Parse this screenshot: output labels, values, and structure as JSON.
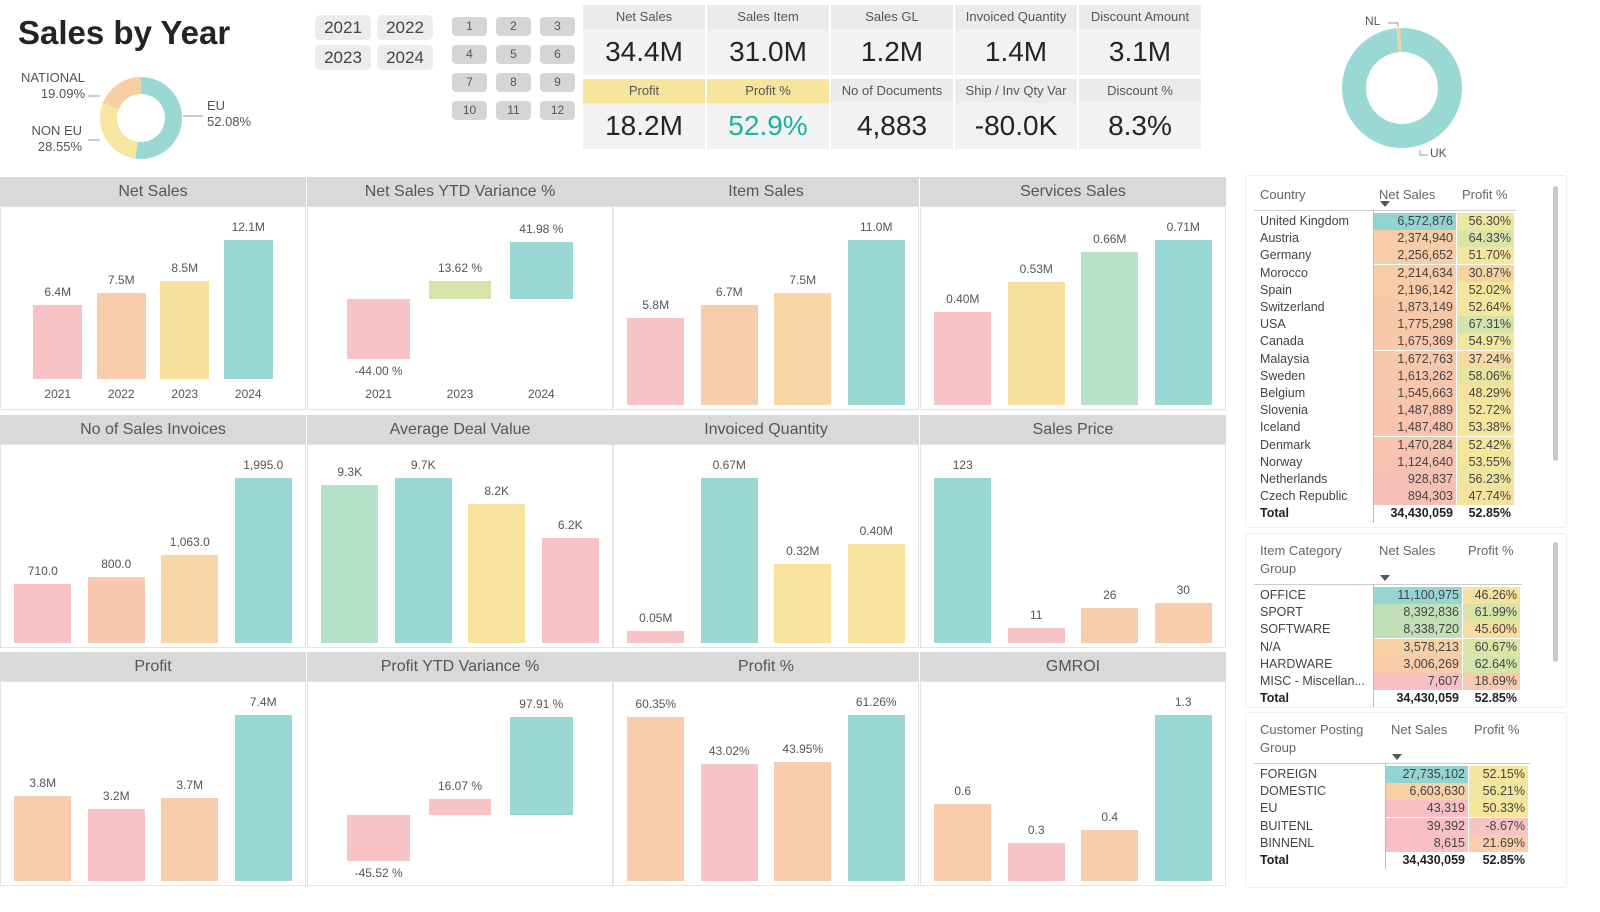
{
  "header": {
    "title": "Sales by Year"
  },
  "year_buttons": [
    "2021",
    "2022",
    "2023",
    "2024"
  ],
  "month_buttons": [
    "1",
    "2",
    "3",
    "4",
    "5",
    "6",
    "7",
    "8",
    "9",
    "10",
    "11",
    "12"
  ],
  "region_donut": {
    "slices": [
      {
        "name": "EU",
        "pct": "52.08%",
        "value": 52.08,
        "color": "#9AD8D5"
      },
      {
        "name": "NON EU",
        "pct": "28.55%",
        "value": 28.55,
        "color": "#F5E6A0"
      },
      {
        "name": "NATIONAL",
        "pct": "19.09%",
        "value": 19.09,
        "color": "#F8CFA2"
      }
    ]
  },
  "country_donut": {
    "slices": [
      {
        "name": "UK",
        "value": 99,
        "color": "#9AD8D5"
      },
      {
        "name": "NL",
        "value": 1,
        "color": "#F8CFA2"
      }
    ]
  },
  "kpis": [
    {
      "label": "Net Sales",
      "value": "34.4M"
    },
    {
      "label": "Sales Item",
      "value": "31.0M"
    },
    {
      "label": "Sales GL",
      "value": "1.2M"
    },
    {
      "label": "Invoiced Quantity",
      "value": "1.4M"
    },
    {
      "label": "Discount Amount",
      "value": "3.1M"
    },
    {
      "label": "Profit",
      "value": "18.2M",
      "highlight": true
    },
    {
      "label": "Profit %",
      "value": "52.9%",
      "highlight": true,
      "value_color": "#1BB3A3"
    },
    {
      "label": "No of Documents",
      "value": "4,883"
    },
    {
      "label": "Ship / Inv Qty Var",
      "value": "-80.0K"
    },
    {
      "label": "Discount %",
      "value": "8.3%"
    }
  ],
  "charts": [
    {
      "title": "Net Sales",
      "categories": [
        "2021",
        "2022",
        "2023",
        "2024"
      ],
      "values": [
        6.4,
        7.5,
        8.5,
        12.1
      ],
      "labels": [
        "6.4M",
        "7.5M",
        "8.5M",
        "12.1M"
      ],
      "colors": [
        "#F8C3C4",
        "#F8CDAE",
        "#F7DF9E",
        "#99D8D4"
      ]
    },
    {
      "title": "Net Sales YTD Variance %",
      "type": "variance",
      "categories": [
        "2021",
        "2023",
        "2024"
      ],
      "values": [
        -44.0,
        13.62,
        41.98
      ],
      "labels": [
        "-44.00 %",
        "13.62 %",
        "41.98 %"
      ],
      "colors": [
        "#F8C3C4",
        "#D6E4A8",
        "#99D8D4"
      ]
    },
    {
      "title": "Item Sales",
      "values": [
        5.8,
        6.7,
        7.5,
        11.0
      ],
      "labels": [
        "5.8M",
        "6.7M",
        "7.5M",
        "11.0M"
      ],
      "colors": [
        "#F8C3C4",
        "#F8CDAE",
        "#F8D6A6",
        "#99D8D4"
      ]
    },
    {
      "title": "Services Sales",
      "values": [
        0.4,
        0.53,
        0.66,
        0.71
      ],
      "labels": [
        "0.40M",
        "0.53M",
        "0.66M",
        "0.71M"
      ],
      "colors": [
        "#F8C3C4",
        "#F7DF9E",
        "#B9E1C8",
        "#99D8D4"
      ]
    },
    {
      "title": "No of Sales Invoices",
      "values": [
        710,
        800,
        1063,
        1995
      ],
      "labels": [
        "710.0",
        "800.0",
        "1,063.0",
        "1,995.0"
      ],
      "colors": [
        "#F8C3C4",
        "#F8C9B0",
        "#F8D6A6",
        "#99D8D4"
      ]
    },
    {
      "title": "Average Deal Value",
      "values": [
        9.3,
        9.7,
        8.2,
        6.2
      ],
      "labels": [
        "9.3K",
        "9.7K",
        "8.2K",
        "6.2K"
      ],
      "colors": [
        "#B5E0C8",
        "#99D8D4",
        "#F7E29E",
        "#F8C3C4"
      ]
    },
    {
      "title": "Invoiced Quantity",
      "values": [
        0.05,
        0.67,
        0.32,
        0.4
      ],
      "labels": [
        "0.05M",
        "0.67M",
        "0.32M",
        "0.40M"
      ],
      "colors": [
        "#F8C3C4",
        "#99D8D4",
        "#F7E29E",
        "#F7E29E"
      ]
    },
    {
      "title": "Sales Price",
      "values": [
        123,
        11,
        26,
        30
      ],
      "labels": [
        "123",
        "11",
        "26",
        "30"
      ],
      "colors": [
        "#99D8D4",
        "#F8C3C4",
        "#F8CDAE",
        "#F8CDAE"
      ]
    },
    {
      "title": "Profit",
      "values": [
        3.8,
        3.2,
        3.7,
        7.4
      ],
      "labels": [
        "3.8M",
        "3.2M",
        "3.7M",
        "7.4M"
      ],
      "colors": [
        "#F8CDAE",
        "#F8C3C4",
        "#F8CDAE",
        "#99D8D4"
      ]
    },
    {
      "title": "Profit YTD Variance %",
      "type": "variance",
      "values": [
        -45.52,
        16.07,
        97.91
      ],
      "labels": [
        "-45.52 %",
        "16.07 %",
        "97.91 %"
      ],
      "colors": [
        "#F8C3C4",
        "#F8C3C4",
        "#99D8D4"
      ]
    },
    {
      "title": "Profit %",
      "values": [
        60.35,
        43.02,
        43.95,
        61.26
      ],
      "labels": [
        "60.35%",
        "43.02%",
        "43.95%",
        "61.26%"
      ],
      "colors": [
        "#F8CDAE",
        "#F8C3C4",
        "#F8CDAE",
        "#99D8D4"
      ]
    },
    {
      "title": "GMROI",
      "values": [
        0.6,
        0.3,
        0.4,
        1.3
      ],
      "labels": [
        "0.6",
        "0.3",
        "0.4",
        "1.3"
      ],
      "colors": [
        "#F8CDAE",
        "#F8C3C4",
        "#F8CDAE",
        "#99D8D4"
      ]
    }
  ],
  "tables": [
    {
      "headers": [
        "Country",
        "Net Sales",
        "Profit %"
      ],
      "rows": [
        [
          "United Kingdom",
          "6,572,876",
          "56.30%",
          "#93D3D2",
          "#EEE79E"
        ],
        [
          "Austria",
          "2,374,940",
          "64.33%",
          "#F8CCA6",
          "#D8E4A8"
        ],
        [
          "Germany",
          "2,256,652",
          "51.70%",
          "#F8CCA6",
          "#F4E69C"
        ],
        [
          "Morocco",
          "2,214,634",
          "30.87%",
          "#F8CCA6",
          "#F6D4A2"
        ],
        [
          "Spain",
          "2,196,142",
          "52.02%",
          "#F8CCA6",
          "#F4E69C"
        ],
        [
          "Switzerland",
          "1,873,149",
          "52.64%",
          "#F8C9A8",
          "#F4E69C"
        ],
        [
          "USA",
          "1,775,298",
          "67.31%",
          "#F8C9A8",
          "#D2E3AE"
        ],
        [
          "Canada",
          "1,675,369",
          "54.97%",
          "#F8C8AA",
          "#F0E69E"
        ],
        [
          "Malaysia",
          "1,672,763",
          "37.24%",
          "#F8C8AA",
          "#F5DBA2"
        ],
        [
          "Sweden",
          "1,613,262",
          "58.06%",
          "#F8C6AC",
          "#E8E5A0"
        ],
        [
          "Belgium",
          "1,545,663",
          "48.29%",
          "#F8C6AC",
          "#F5E29E"
        ],
        [
          "Slovenia",
          "1,487,889",
          "52.72%",
          "#F8C4AE",
          "#F4E69C"
        ],
        [
          "Iceland",
          "1,487,480",
          "53.38%",
          "#F8C4AE",
          "#F2E69C"
        ],
        [
          "Denmark",
          "1,470,284",
          "52.42%",
          "#F8C4AE",
          "#F4E69C"
        ],
        [
          "Norway",
          "1,124,640",
          "53.55%",
          "#F8C2B2",
          "#F2E69C"
        ],
        [
          "Netherlands",
          "928,837",
          "56.23%",
          "#F8BFB6",
          "#EEE69E"
        ],
        [
          "Czech Republic",
          "894,303",
          "47.74%",
          "#F8BFB6",
          "#F5E29E"
        ]
      ],
      "total": [
        "Total",
        "34,430,059",
        "52.85%"
      ]
    },
    {
      "headers": [
        "Item Category Group",
        "Net Sales",
        "Profit %"
      ],
      "rows": [
        [
          "OFFICE",
          "11,100,975",
          "46.26%",
          "#96D5D2",
          "#F6E29E"
        ],
        [
          "SPORT",
          "8,392,836",
          "61.99%",
          "#C2E0B8",
          "#D6E4A8"
        ],
        [
          "SOFTWARE",
          "8,338,720",
          "45.60%",
          "#C2E0B8",
          "#F7DDA0"
        ],
        [
          "N/A",
          "3,578,213",
          "60.67%",
          "#F8D0A6",
          "#DCE4A6"
        ],
        [
          "HARDWARE",
          "3,006,269",
          "62.64%",
          "#F8CCA8",
          "#D4E4AA"
        ],
        [
          "MISC - Miscellan...",
          "7,607",
          "18.69%",
          "#F8C0C4",
          "#F8CAB0"
        ]
      ],
      "total": [
        "Total",
        "34,430,059",
        "52.85%"
      ]
    },
    {
      "headers": [
        "Customer Posting Group",
        "Net Sales",
        "Profit %"
      ],
      "rows": [
        [
          "FOREIGN",
          "27,735,102",
          "52.15%",
          "#93D3D2",
          "#F4E69C"
        ],
        [
          "DOMESTIC",
          "6,603,630",
          "56.21%",
          "#F8D0A6",
          "#F0E69E"
        ],
        [
          "EU",
          "43,319",
          "50.33%",
          "#F8C0C4",
          "#F5E69C"
        ],
        [
          "BUITENL",
          "39,392",
          "-8.67%",
          "#F8C0C4",
          "#F8C3C4"
        ],
        [
          "BINNENL",
          "8,615",
          "21.69%",
          "#F8C0C4",
          "#F8CFAA"
        ]
      ],
      "total": [
        "Total",
        "34,430,059",
        "52.85%"
      ]
    }
  ]
}
